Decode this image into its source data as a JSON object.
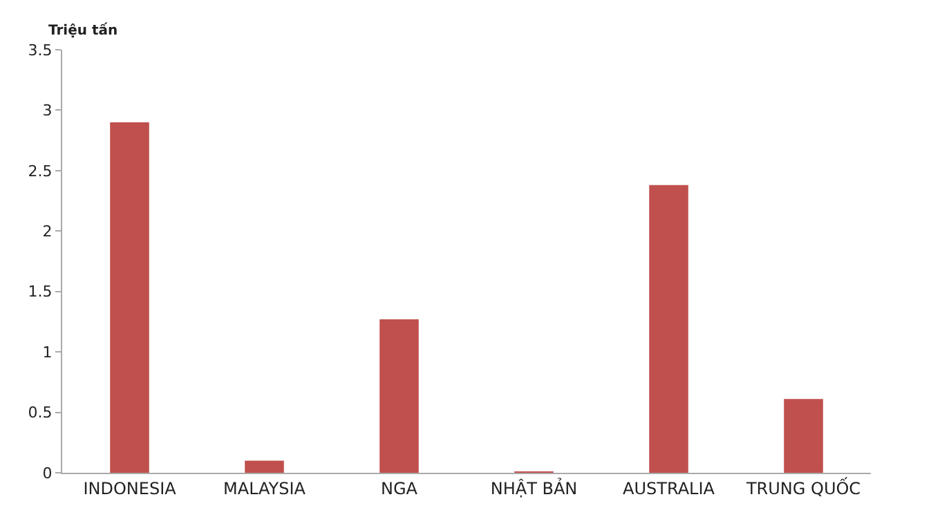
{
  "chart_data": {
    "type": "bar",
    "ylabel": "Triệu tấn",
    "categories": [
      "INDONESIA",
      "MALAYSIA",
      "NGA",
      "NHẬT BẢN",
      "AUSTRALIA",
      "TRUNG QUỐC"
    ],
    "values": [
      2.9,
      0.1,
      1.27,
      0.01,
      2.38,
      0.61
    ],
    "color": "#c0504d",
    "ylim": [
      0,
      3.5
    ],
    "yticks": [
      0,
      0.5,
      1,
      1.5,
      2,
      2.5,
      3,
      3.5
    ]
  }
}
